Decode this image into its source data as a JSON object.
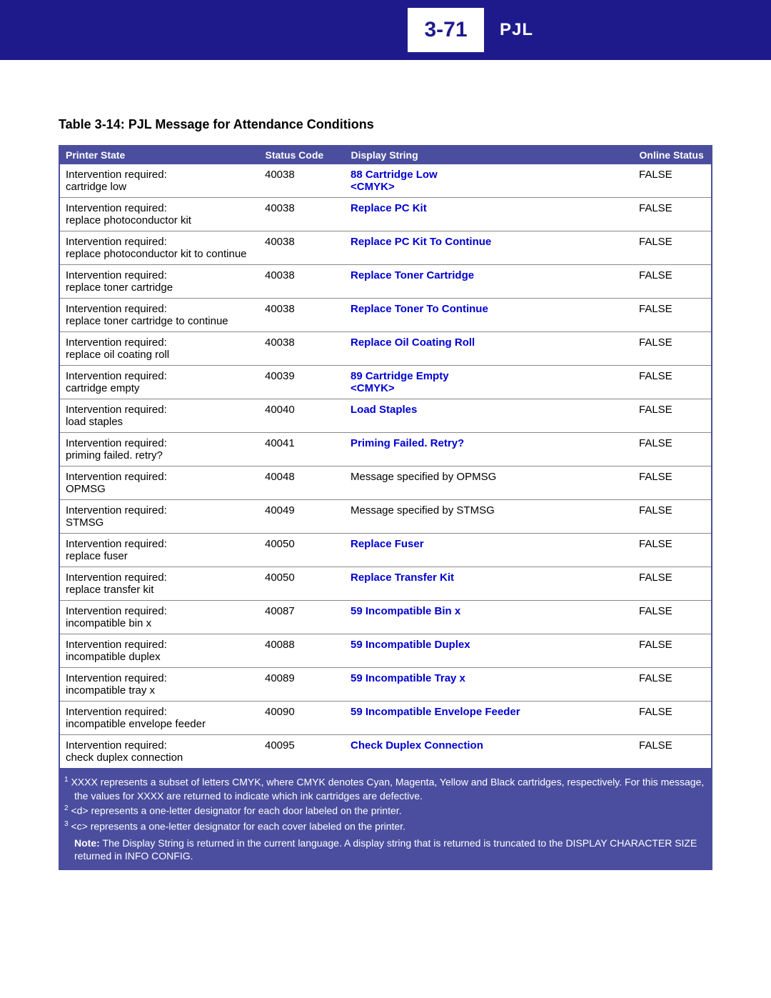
{
  "header": {
    "page_number": "3-71",
    "section_label": "PJL"
  },
  "table": {
    "title": "Table 3-14:  PJL Message for Attendance Conditions",
    "columns": [
      "Printer State",
      "Status Code",
      "Display String",
      "Online Status"
    ],
    "rows": [
      {
        "ps1": "Intervention required:",
        "ps2": "cartridge low",
        "code": "40038",
        "ds": "88 Cartridge Low\n<CMYK>",
        "ds_bold": true,
        "online": "FALSE"
      },
      {
        "ps1": "Intervention required:",
        "ps2": "replace photoconductor kit",
        "code": "40038",
        "ds": "Replace PC Kit",
        "ds_bold": true,
        "online": "FALSE"
      },
      {
        "ps1": "Intervention required:",
        "ps2": "replace photoconductor kit to continue",
        "code": "40038",
        "ds": "Replace PC Kit To Continue",
        "ds_bold": true,
        "online": "FALSE"
      },
      {
        "ps1": "Intervention required:",
        "ps2": "replace toner cartridge",
        "code": "40038",
        "ds": "Replace Toner Cartridge",
        "ds_bold": true,
        "online": "FALSE"
      },
      {
        "ps1": "Intervention required:",
        "ps2": "replace toner cartridge to continue",
        "code": "40038",
        "ds": "Replace Toner To Continue",
        "ds_bold": true,
        "online": "FALSE"
      },
      {
        "ps1": "Intervention required:",
        "ps2": "replace oil coating roll",
        "code": "40038",
        "ds": "Replace Oil Coating Roll",
        "ds_bold": true,
        "online": "FALSE"
      },
      {
        "ps1": "Intervention required:",
        "ps2": "cartridge empty",
        "code": "40039",
        "ds": "89 Cartridge Empty\n<CMYK>",
        "ds_bold": true,
        "online": "FALSE"
      },
      {
        "ps1": "Intervention required:",
        "ps2": "load staples",
        "code": "40040",
        "ds": "Load Staples",
        "ds_bold": true,
        "online": "FALSE"
      },
      {
        "ps1": "Intervention required:",
        "ps2": "priming failed. retry?",
        "code": "40041",
        "ds": "Priming Failed. Retry?",
        "ds_bold": true,
        "online": "FALSE"
      },
      {
        "ps1": "Intervention required:",
        "ps2": "OPMSG",
        "code": "40048",
        "ds": "Message specified by OPMSG",
        "ds_bold": false,
        "online": "FALSE"
      },
      {
        "ps1": "Intervention required:",
        "ps2": "STMSG",
        "code": "40049",
        "ds": "Message specified by STMSG",
        "ds_bold": false,
        "online": "FALSE"
      },
      {
        "ps1": "Intervention required:",
        "ps2": "replace fuser",
        "code": "40050",
        "ds": "Replace Fuser",
        "ds_bold": true,
        "online": "FALSE"
      },
      {
        "ps1": "Intervention required:",
        "ps2": "replace transfer kit",
        "code": "40050",
        "ds": "Replace Transfer Kit",
        "ds_bold": true,
        "online": "FALSE"
      },
      {
        "ps1": "Intervention required:",
        "ps2": "incompatible bin x",
        "code": "40087",
        "ds": "59 Incompatible Bin x",
        "ds_bold": true,
        "online": "FALSE"
      },
      {
        "ps1": "Intervention required:",
        "ps2": "incompatible duplex",
        "code": "40088",
        "ds": "59 Incompatible Duplex",
        "ds_bold": true,
        "online": "FALSE"
      },
      {
        "ps1": "Intervention required:",
        "ps2": "incompatible tray x",
        "code": "40089",
        "ds": "59 Incompatible Tray x",
        "ds_bold": true,
        "online": "FALSE"
      },
      {
        "ps1": "Intervention required:",
        "ps2": "incompatible envelope feeder",
        "code": "40090",
        "ds": "59 Incompatible Envelope Feeder",
        "ds_bold": true,
        "online": "FALSE"
      },
      {
        "ps1": "Intervention required:",
        "ps2": "check duplex connection",
        "code": "40095",
        "ds": "Check Duplex Connection",
        "ds_bold": true,
        "online": "FALSE"
      }
    ]
  },
  "footnotes": {
    "f1": "XXXX represents a subset of letters CMYK, where CMYK denotes Cyan, Magenta, Yellow and Black cartridges, respectively. For this message, the values for XXXX are returned to indicate which ink cartridges are defective.",
    "f2": "<d> represents a one-letter designator for each door labeled on the printer.",
    "f3": "<c> represents a one-letter designator for each cover labeled on the printer.",
    "note_label": "Note:",
    "note_text": "The Display String is returned in the current language. A display string that is returned is truncated to the DISPLAY CHARACTER SIZE returned in INFO CONFIG."
  }
}
